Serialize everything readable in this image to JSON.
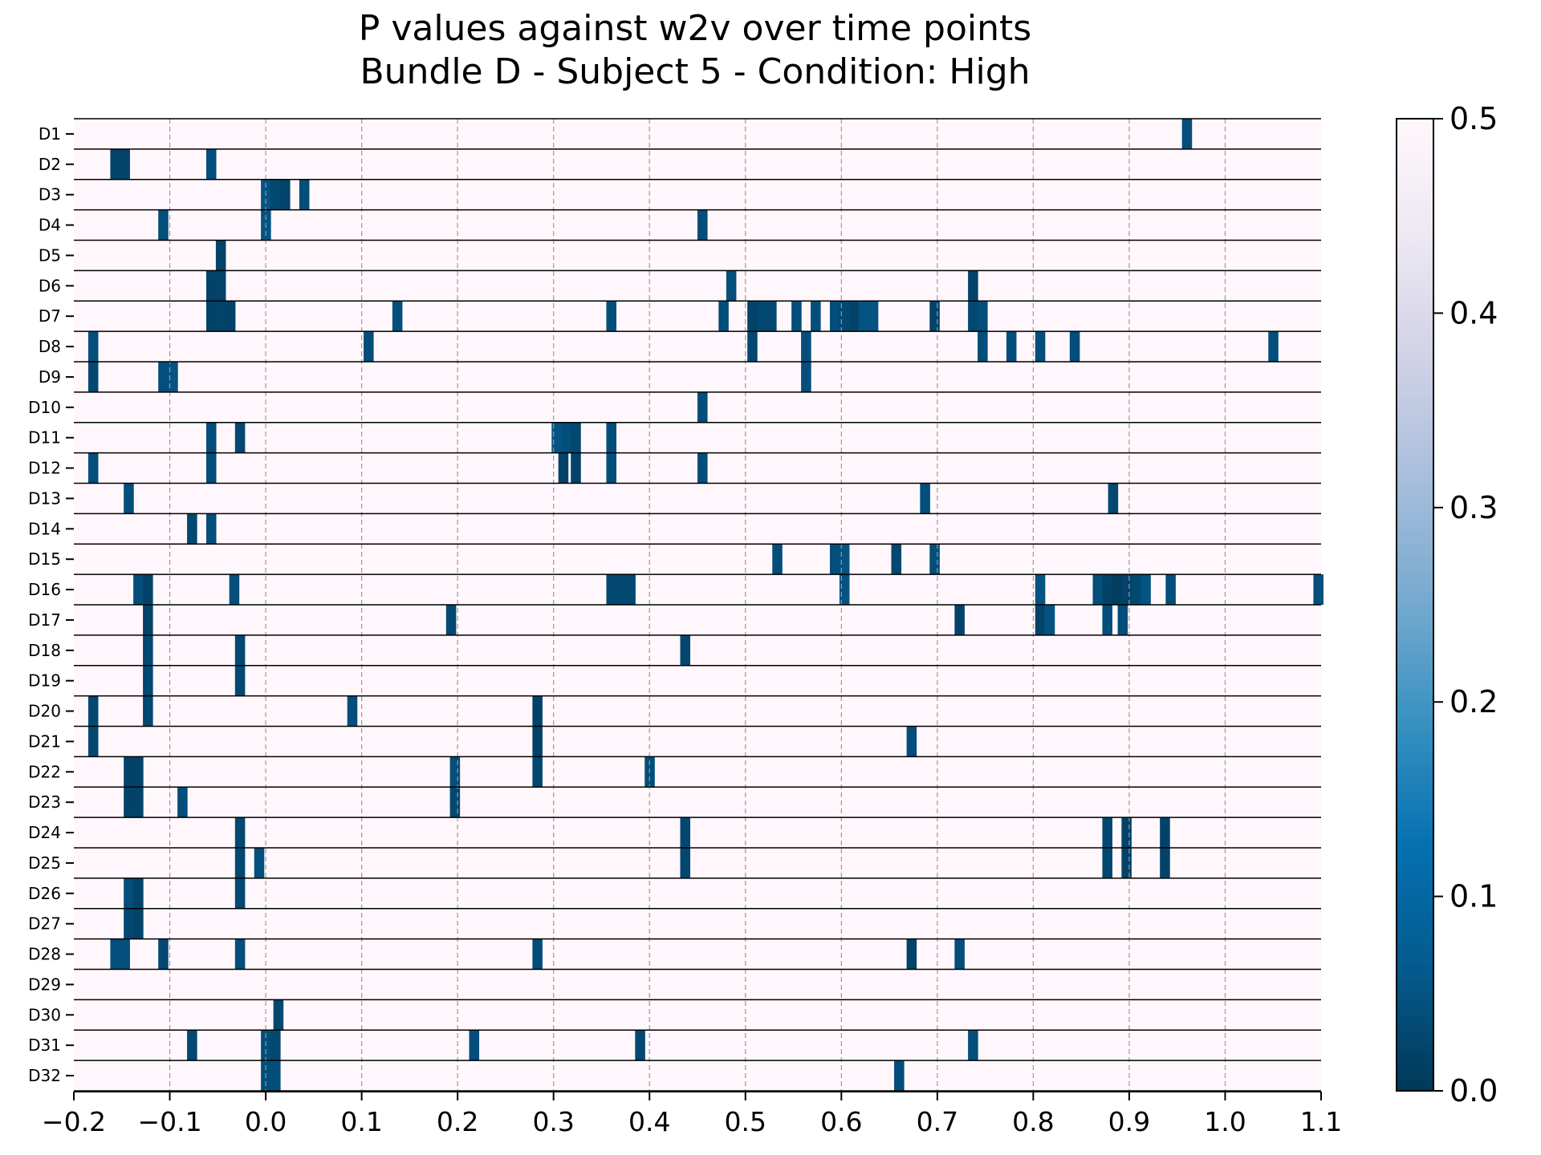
{
  "chart_data": {
    "type": "heatmap",
    "title": "P values against w2v over time points",
    "subtitle": "Bundle D - Subject 5 - Condition: High",
    "xlim": [
      -0.2,
      1.1
    ],
    "x_ticks": [
      -0.2,
      -0.1,
      0.0,
      0.1,
      0.2,
      0.3,
      0.4,
      0.5,
      0.6,
      0.7,
      0.8,
      0.9,
      1.0,
      1.1
    ],
    "x_tick_labels": [
      "−0.2",
      "−0.1",
      "0.0",
      "0.1",
      "0.2",
      "0.3",
      "0.4",
      "0.5",
      "0.6",
      "0.7",
      "0.8",
      "0.9",
      "1.0",
      "1.1"
    ],
    "grid": "vertical dashed at x ticks",
    "bin_width": 0.01,
    "colormap": "PuBu_r",
    "colorbar": {
      "range": [
        0.0,
        0.5
      ],
      "ticks": [
        0.0,
        0.1,
        0.2,
        0.3,
        0.4,
        0.5
      ],
      "tick_labels": [
        "0.0",
        "0.1",
        "0.2",
        "0.3",
        "0.4",
        "0.5"
      ],
      "colors": [
        "#023858",
        "#045a8d",
        "#0570b0",
        "#3690c0",
        "#74a9cf",
        "#a6bddb",
        "#d0d1e6",
        "#ece7f2",
        "#fff7fb"
      ]
    },
    "rows": [
      {
        "label": "D1",
        "cells": [
          [
            0.955,
            0.04
          ]
        ]
      },
      {
        "label": "D2",
        "cells": [
          [
            -0.162,
            0.02
          ],
          [
            -0.152,
            0.02
          ],
          [
            -0.062,
            0.04
          ]
        ]
      },
      {
        "label": "D3",
        "cells": [
          [
            -0.005,
            0.05
          ],
          [
            0.005,
            0.03
          ],
          [
            0.015,
            0.02
          ],
          [
            0.035,
            0.04
          ]
        ]
      },
      {
        "label": "D4",
        "cells": [
          [
            -0.112,
            0.04
          ],
          [
            -0.005,
            0.05
          ],
          [
            0.45,
            0.04
          ]
        ]
      },
      {
        "label": "D5",
        "cells": [
          [
            -0.052,
            0.02
          ]
        ]
      },
      {
        "label": "D6",
        "cells": [
          [
            -0.062,
            0.02
          ],
          [
            -0.052,
            0.02
          ],
          [
            0.48,
            0.04
          ],
          [
            0.732,
            0.02
          ]
        ]
      },
      {
        "label": "D7",
        "cells": [
          [
            -0.062,
            0.02
          ],
          [
            -0.052,
            0.02
          ],
          [
            -0.042,
            0.02
          ],
          [
            0.132,
            0.04
          ],
          [
            0.355,
            0.04
          ],
          [
            0.472,
            0.04
          ],
          [
            0.502,
            0.02
          ],
          [
            0.512,
            0.03
          ],
          [
            0.522,
            0.03
          ],
          [
            0.548,
            0.04
          ],
          [
            0.568,
            0.04
          ],
          [
            0.588,
            0.04
          ],
          [
            0.598,
            0.03
          ],
          [
            0.608,
            0.02
          ],
          [
            0.618,
            0.05
          ],
          [
            0.628,
            0.05
          ],
          [
            0.692,
            0.02
          ],
          [
            0.732,
            0.03
          ],
          [
            0.742,
            0.04
          ]
        ]
      },
      {
        "label": "D8",
        "cells": [
          [
            -0.185,
            0.04
          ],
          [
            0.102,
            0.04
          ],
          [
            0.502,
            0.03
          ],
          [
            0.558,
            0.04
          ],
          [
            0.742,
            0.04
          ],
          [
            0.772,
            0.04
          ],
          [
            0.802,
            0.04
          ],
          [
            0.838,
            0.04
          ],
          [
            1.045,
            0.04
          ]
        ]
      },
      {
        "label": "D9",
        "cells": [
          [
            -0.185,
            0.03
          ],
          [
            -0.112,
            0.04
          ],
          [
            -0.102,
            0.05
          ],
          [
            0.558,
            0.04
          ]
        ]
      },
      {
        "label": "D10",
        "cells": [
          [
            0.45,
            0.04
          ]
        ]
      },
      {
        "label": "D11",
        "cells": [
          [
            -0.062,
            0.04
          ],
          [
            -0.032,
            0.03
          ],
          [
            0.298,
            0.05
          ],
          [
            0.308,
            0.04
          ],
          [
            0.318,
            0.03
          ],
          [
            0.355,
            0.04
          ]
        ]
      },
      {
        "label": "D12",
        "cells": [
          [
            -0.185,
            0.04
          ],
          [
            -0.062,
            0.04
          ],
          [
            0.305,
            0.02
          ],
          [
            0.318,
            0.02
          ],
          [
            0.355,
            0.04
          ],
          [
            0.45,
            0.04
          ]
        ]
      },
      {
        "label": "D13",
        "cells": [
          [
            -0.148,
            0.04
          ],
          [
            0.682,
            0.04
          ],
          [
            0.878,
            0.03
          ]
        ]
      },
      {
        "label": "D14",
        "cells": [
          [
            -0.082,
            0.03
          ],
          [
            -0.062,
            0.04
          ]
        ]
      },
      {
        "label": "D15",
        "cells": [
          [
            0.528,
            0.04
          ],
          [
            0.588,
            0.04
          ],
          [
            0.598,
            0.05
          ],
          [
            0.652,
            0.03
          ],
          [
            0.692,
            0.04
          ]
        ]
      },
      {
        "label": "D16",
        "cells": [
          [
            -0.138,
            0.04
          ],
          [
            -0.128,
            0.02
          ],
          [
            -0.038,
            0.04
          ],
          [
            0.355,
            0.03
          ],
          [
            0.365,
            0.03
          ],
          [
            0.375,
            0.03
          ],
          [
            0.598,
            0.05
          ],
          [
            0.802,
            0.05
          ],
          [
            0.862,
            0.04
          ],
          [
            0.872,
            0.02
          ],
          [
            0.882,
            0.01
          ],
          [
            0.892,
            0.02
          ],
          [
            0.902,
            0.03
          ],
          [
            0.912,
            0.05
          ],
          [
            0.938,
            0.04
          ],
          [
            1.092,
            0.04
          ]
        ]
      },
      {
        "label": "D17",
        "cells": [
          [
            -0.128,
            0.02
          ],
          [
            0.188,
            0.03
          ],
          [
            0.718,
            0.02
          ],
          [
            0.802,
            0.02
          ],
          [
            0.812,
            0.05
          ],
          [
            0.872,
            0.04
          ],
          [
            0.888,
            0.04
          ]
        ]
      },
      {
        "label": "D18",
        "cells": [
          [
            -0.128,
            0.03
          ],
          [
            -0.032,
            0.03
          ],
          [
            0.432,
            0.03
          ]
        ]
      },
      {
        "label": "D19",
        "cells": [
          [
            -0.128,
            0.03
          ],
          [
            -0.032,
            0.03
          ]
        ]
      },
      {
        "label": "D20",
        "cells": [
          [
            -0.185,
            0.03
          ],
          [
            -0.128,
            0.03
          ],
          [
            0.085,
            0.04
          ],
          [
            0.278,
            0.02
          ]
        ]
      },
      {
        "label": "D21",
        "cells": [
          [
            -0.185,
            0.03
          ],
          [
            0.278,
            0.02
          ],
          [
            0.668,
            0.04
          ]
        ]
      },
      {
        "label": "D22",
        "cells": [
          [
            -0.148,
            0.02
          ],
          [
            -0.138,
            0.02
          ],
          [
            0.192,
            0.04
          ],
          [
            0.278,
            0.03
          ],
          [
            0.395,
            0.04
          ]
        ]
      },
      {
        "label": "D23",
        "cells": [
          [
            -0.148,
            0.02
          ],
          [
            -0.138,
            0.02
          ],
          [
            -0.092,
            0.04
          ],
          [
            0.192,
            0.03
          ]
        ]
      },
      {
        "label": "D24",
        "cells": [
          [
            -0.032,
            0.03
          ],
          [
            0.432,
            0.03
          ],
          [
            0.872,
            0.03
          ],
          [
            0.892,
            0.02
          ],
          [
            0.932,
            0.02
          ]
        ]
      },
      {
        "label": "D25",
        "cells": [
          [
            -0.032,
            0.03
          ],
          [
            -0.012,
            0.04
          ],
          [
            0.432,
            0.03
          ],
          [
            0.872,
            0.03
          ],
          [
            0.892,
            0.02
          ],
          [
            0.932,
            0.02
          ]
        ]
      },
      {
        "label": "D26",
        "cells": [
          [
            -0.148,
            0.04
          ],
          [
            -0.138,
            0.02
          ],
          [
            -0.032,
            0.03
          ]
        ]
      },
      {
        "label": "D27",
        "cells": [
          [
            -0.148,
            0.03
          ],
          [
            -0.138,
            0.02
          ]
        ]
      },
      {
        "label": "D28",
        "cells": [
          [
            -0.162,
            0.04
          ],
          [
            -0.152,
            0.04
          ],
          [
            -0.112,
            0.03
          ],
          [
            -0.032,
            0.04
          ],
          [
            0.278,
            0.04
          ],
          [
            0.668,
            0.02
          ],
          [
            0.718,
            0.04
          ]
        ]
      },
      {
        "label": "D29",
        "cells": []
      },
      {
        "label": "D30",
        "cells": [
          [
            0.008,
            0.03
          ]
        ]
      },
      {
        "label": "D31",
        "cells": [
          [
            -0.082,
            0.03
          ],
          [
            -0.005,
            0.04
          ],
          [
            0.005,
            0.03
          ],
          [
            0.212,
            0.04
          ],
          [
            0.385,
            0.03
          ],
          [
            0.732,
            0.04
          ]
        ]
      },
      {
        "label": "D32",
        "cells": [
          [
            -0.005,
            0.04
          ],
          [
            0.005,
            0.04
          ],
          [
            0.655,
            0.04
          ]
        ]
      }
    ]
  }
}
